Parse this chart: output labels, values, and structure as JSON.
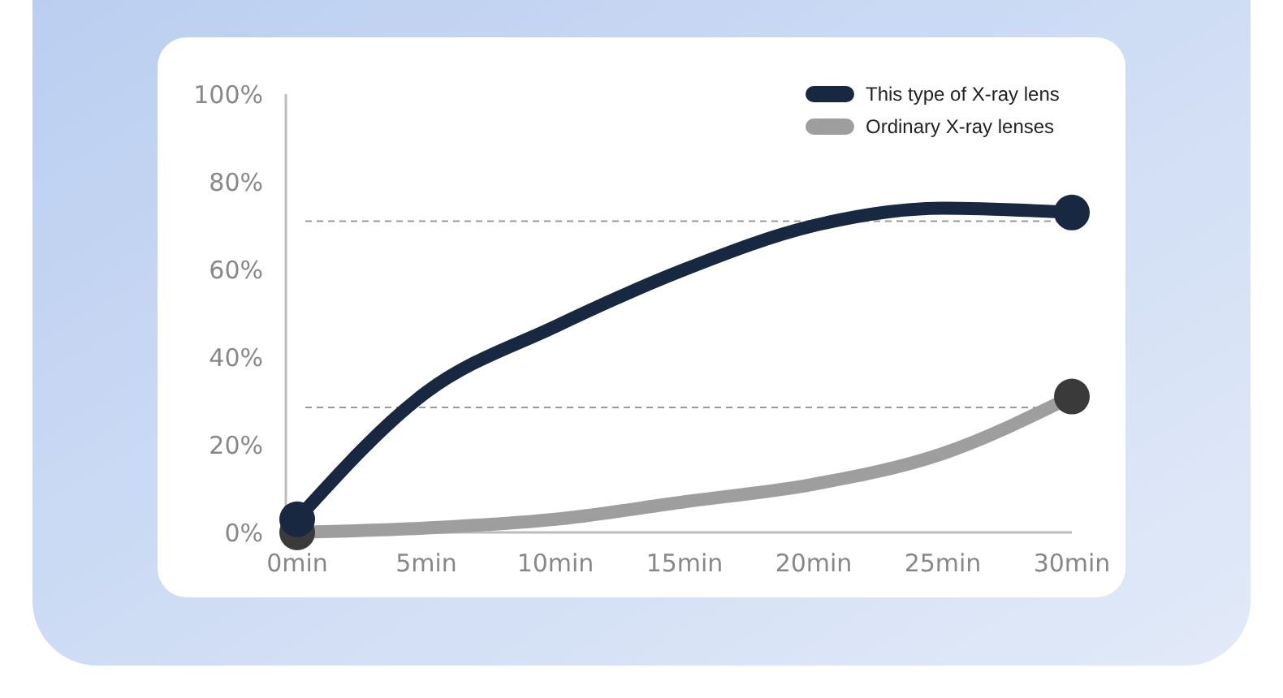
{
  "chart_data": {
    "type": "line",
    "x": [
      0,
      5,
      10,
      15,
      20,
      25,
      30
    ],
    "series": [
      {
        "name": "This type of X-ray lens",
        "color": "#182840",
        "values": [
          3,
          32,
          47,
          60,
          70,
          74,
          73
        ]
      },
      {
        "name": "Ordinary X-ray lenses",
        "color": "#9e9e9e",
        "values": [
          0,
          1,
          3,
          7,
          11,
          18,
          31
        ]
      }
    ],
    "xlim": [
      0,
      30
    ],
    "xticks": [
      {
        "value": 0,
        "label": "0min"
      },
      {
        "value": 5,
        "label": "5min"
      },
      {
        "value": 10,
        "label": "10min"
      },
      {
        "value": 15,
        "label": "15min"
      },
      {
        "value": 20,
        "label": "20min"
      },
      {
        "value": 25,
        "label": "25min"
      },
      {
        "value": 30,
        "label": "30min"
      }
    ],
    "ylim": [
      0,
      100
    ],
    "yticks": [
      {
        "value": 0,
        "label": "0%"
      },
      {
        "value": 20,
        "label": "20%"
      },
      {
        "value": 40,
        "label": "40%"
      },
      {
        "value": 60,
        "label": "60%"
      },
      {
        "value": 80,
        "label": "80%"
      },
      {
        "value": 100,
        "label": "100%"
      }
    ],
    "ref_lines": [
      {
        "axis": "y",
        "value": 71,
        "color": "#999999",
        "line_style": "dashed"
      },
      {
        "axis": "y",
        "value": 28.5,
        "color": "#999999",
        "line_style": "dashed"
      }
    ],
    "legend": "top right",
    "grid": false,
    "line_style": "solid"
  }
}
